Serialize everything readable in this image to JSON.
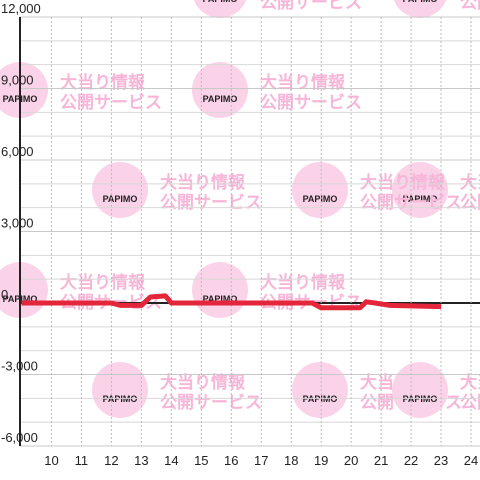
{
  "chart_data": {
    "type": "line",
    "watermark_logo": "PAPIMO",
    "watermark_lines": [
      "大当り情報",
      "公開サービス"
    ],
    "x": [
      9,
      12,
      12.3,
      13,
      13.3,
      13.8,
      14,
      18.7,
      19,
      20.3,
      20.5,
      20.8,
      21.3,
      23
    ],
    "series": [
      {
        "color": "#e3263a",
        "values": [
          0,
          0,
          -100,
          -100,
          250,
          300,
          0,
          0,
          -200,
          -200,
          50,
          0,
          -100,
          -150
        ]
      }
    ],
    "xlim": [
      8.95,
      24.3
    ],
    "xticks": [
      10,
      11,
      12,
      13,
      14,
      15,
      16,
      17,
      18,
      19,
      20,
      21,
      22,
      23,
      24
    ],
    "ylim": [
      -6000,
      12000
    ],
    "yticks": [
      {
        "value": -6000,
        "label": "-6,000"
      },
      {
        "value": -3000,
        "label": "-3,000"
      },
      0,
      {
        "value": 3000,
        "label": "3,000"
      },
      {
        "value": 6000,
        "label": "6,000"
      },
      {
        "value": 9000,
        "label": "9,000"
      },
      {
        "value": 12000,
        "label": "12,000"
      }
    ],
    "y_minor_grid": [
      -5000,
      -4000,
      -2000,
      -1000,
      1000,
      2000,
      4000,
      5000,
      7000,
      8000,
      10000,
      11000
    ],
    "grid": true
  }
}
